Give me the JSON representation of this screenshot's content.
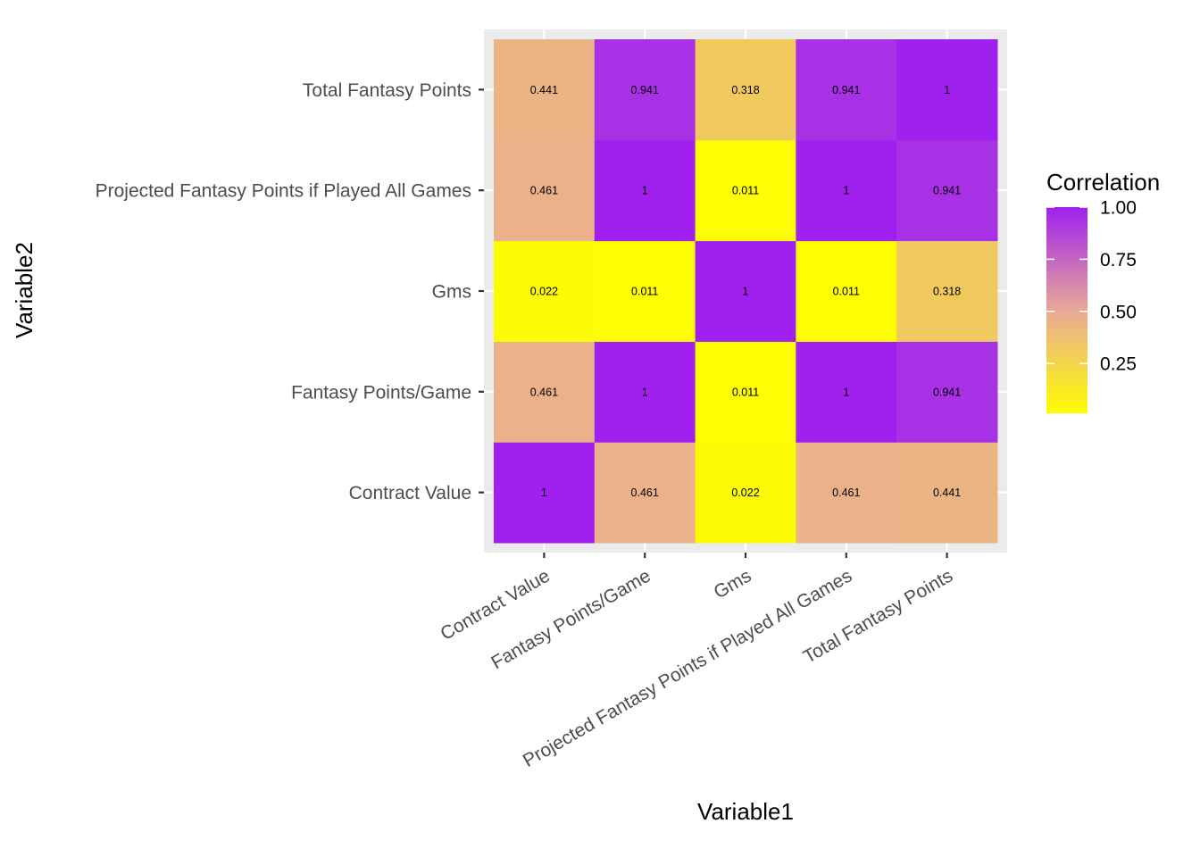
{
  "chart_data": {
    "type": "heatmap",
    "title": "",
    "xlabel": "Variable1",
    "ylabel": "Variable2",
    "x_categories": [
      "Contract Value",
      "Fantasy Points/Game",
      "Gms",
      "Projected Fantasy Points if Played All Games",
      "Total Fantasy Points"
    ],
    "y_categories": [
      "Contract Value",
      "Fantasy Points/Game",
      "Gms",
      "Projected Fantasy Points if Played All Games",
      "Total Fantasy Points"
    ],
    "values": [
      [
        1,
        0.461,
        0.022,
        0.461,
        0.441
      ],
      [
        0.461,
        1,
        0.011,
        1,
        0.941
      ],
      [
        0.022,
        0.011,
        1,
        0.011,
        0.318
      ],
      [
        0.461,
        1,
        0.011,
        1,
        0.941
      ],
      [
        0.441,
        0.941,
        0.318,
        0.941,
        1
      ]
    ],
    "legend": {
      "title": "Correlation",
      "position": "right",
      "breaks": [
        1.0,
        0.75,
        0.5,
        0.25
      ],
      "break_labels": [
        "1.00",
        "0.75",
        "0.50",
        "0.25"
      ],
      "range": [
        0.011,
        1
      ],
      "color_low": "#FFFF00",
      "color_mid": "#E8AA96",
      "color_high": "#A020F0",
      "midpoint": 0.5
    },
    "panel_background": "#EBEBEB",
    "grid": true
  }
}
